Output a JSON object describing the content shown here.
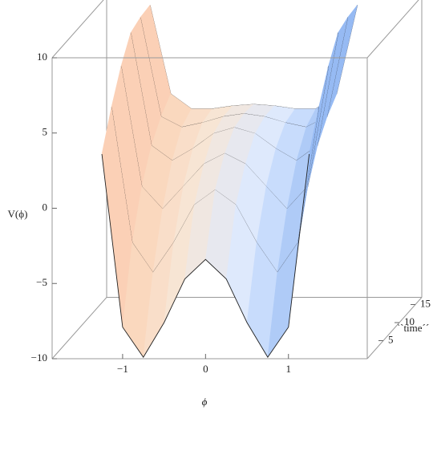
{
  "chart_data": {
    "type": "surface3d",
    "xlabel": "ϕ",
    "ylabel": "V(ϕ)",
    "zlabel": "``time´´",
    "x": [
      -1.25,
      -1,
      -0.75,
      -0.5,
      -0.25,
      0,
      0.25,
      0.5,
      0.75,
      1,
      1.25
    ],
    "series": [
      {
        "z": 0,
        "values": [
          3.6,
          -7.9,
          -9.9,
          -7.6,
          -4.7,
          -3.4,
          -4.7,
          -7.6,
          -9.9,
          -7.9,
          3.6
        ]
      },
      {
        "z": 3,
        "values": [
          6,
          -3,
          -5,
          -3,
          -0.5,
          0.5,
          -0.5,
          -3,
          -5,
          -3,
          6
        ]
      },
      {
        "z": 6,
        "values": [
          8,
          0,
          -1.5,
          0,
          1.5,
          2.2,
          1.5,
          0,
          -1.5,
          0,
          8
        ]
      },
      {
        "z": 9,
        "values": [
          9.5,
          2,
          1,
          1.8,
          2.8,
          3.2,
          2.8,
          1.8,
          1,
          2,
          9.5
        ]
      },
      {
        "z": 12,
        "values": [
          9.8,
          3.2,
          2.5,
          2.8,
          3.2,
          3.4,
          3.2,
          2.8,
          2.5,
          3.2,
          9.8
        ]
      },
      {
        "z": 15,
        "values": [
          9.9,
          4,
          3,
          3,
          3.2,
          3.3,
          3.2,
          3,
          3,
          4,
          9.9
        ]
      }
    ],
    "colormap": [
      "#f2a2dc",
      "#fbd2b4",
      "#f7e6d6",
      "#dce9ff",
      "#8fb6f2",
      "#5a3fc8"
    ],
    "xlim": [
      -1.85,
      1.95
    ],
    "ylim": [
      -10,
      10
    ],
    "zlim": [
      0,
      17
    ],
    "xticks": [
      {
        "value": -1,
        "label": "−1"
      },
      0,
      1
    ],
    "yticks": [
      {
        "value": -10,
        "label": "−10"
      },
      {
        "value": -5,
        "label": "−5"
      },
      0,
      5,
      10
    ],
    "zticks": [
      5,
      10,
      15
    ]
  }
}
